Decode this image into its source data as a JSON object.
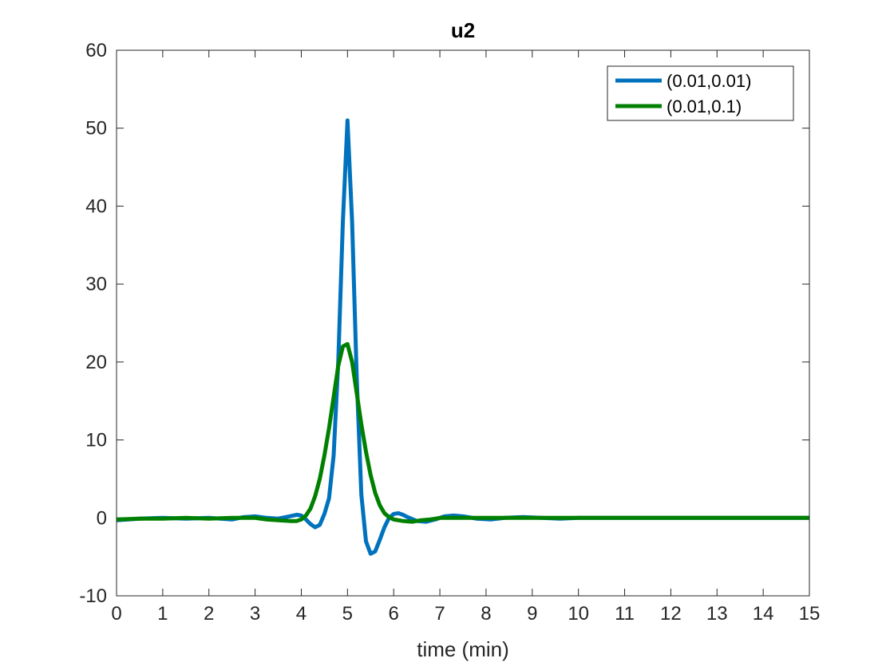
{
  "chart_data": {
    "type": "line",
    "title": "u2",
    "xlabel": "time (min)",
    "ylabel": "",
    "xlim": [
      0,
      15
    ],
    "ylim": [
      -10,
      60
    ],
    "xticks": [
      0,
      1,
      2,
      3,
      4,
      5,
      6,
      7,
      8,
      9,
      10,
      11,
      12,
      13,
      14,
      15
    ],
    "yticks": [
      -10,
      0,
      10,
      20,
      30,
      40,
      50,
      60
    ],
    "xtick_labels": [
      "0",
      "1",
      "2",
      "3",
      "4",
      "5",
      "6",
      "7",
      "8",
      "9",
      "10",
      "11",
      "12",
      "13",
      "14",
      "15"
    ],
    "ytick_labels": [
      "-10",
      "0",
      "10",
      "20",
      "30",
      "40",
      "50",
      "60"
    ],
    "grid": false,
    "legend_position": "top-right",
    "series": [
      {
        "name": "(0.01,0.01)",
        "color": "#0072BD",
        "x": [
          0,
          0.5,
          1,
          1.5,
          2,
          2.5,
          2.75,
          3,
          3.25,
          3.5,
          3.75,
          3.9,
          4.0,
          4.1,
          4.2,
          4.3,
          4.4,
          4.5,
          4.6,
          4.7,
          4.8,
          4.9,
          5.0,
          5.1,
          5.2,
          5.3,
          5.4,
          5.5,
          5.6,
          5.7,
          5.8,
          5.9,
          6.0,
          6.1,
          6.2,
          6.3,
          6.5,
          6.7,
          6.9,
          7.1,
          7.3,
          7.5,
          7.8,
          8.1,
          8.4,
          8.8,
          9.2,
          9.6,
          10,
          11,
          12,
          13,
          14,
          15
        ],
        "y": [
          -0.3,
          -0.1,
          0,
          -0.1,
          0,
          -0.2,
          0.1,
          0.2,
          0,
          -0.1,
          0.2,
          0.4,
          0.3,
          -0.2,
          -0.8,
          -1.2,
          -0.9,
          0.5,
          2.5,
          8,
          20,
          38,
          51,
          38,
          18,
          3,
          -3,
          -4.6,
          -4.3,
          -2.8,
          -1.2,
          0,
          0.5,
          0.6,
          0.4,
          0.1,
          -0.4,
          -0.5,
          -0.2,
          0.2,
          0.3,
          0.2,
          -0.1,
          -0.2,
          0,
          0.1,
          0,
          -0.1,
          0,
          0,
          0,
          0,
          0,
          0
        ]
      },
      {
        "name": "(0.01,0.1)",
        "color": "#008000",
        "x": [
          0,
          0.5,
          1,
          1.5,
          2,
          2.5,
          3,
          3.25,
          3.5,
          3.75,
          3.9,
          4.0,
          4.1,
          4.2,
          4.3,
          4.4,
          4.5,
          4.6,
          4.7,
          4.8,
          4.9,
          5.0,
          5.1,
          5.2,
          5.3,
          5.4,
          5.5,
          5.6,
          5.7,
          5.8,
          5.9,
          6.0,
          6.2,
          6.4,
          6.6,
          6.8,
          7.0,
          7.5,
          8,
          9,
          10,
          11,
          12,
          13,
          14,
          15
        ],
        "y": [
          -0.2,
          -0.1,
          -0.1,
          0,
          -0.1,
          0,
          0,
          -0.2,
          -0.3,
          -0.4,
          -0.4,
          -0.2,
          0.3,
          1.2,
          2.8,
          5,
          8,
          11.5,
          15.5,
          19.5,
          22,
          22.3,
          20,
          16,
          12,
          8.5,
          5.5,
          3.2,
          1.6,
          0.6,
          0.1,
          -0.2,
          -0.4,
          -0.5,
          -0.3,
          -0.2,
          0,
          0,
          0,
          0,
          0,
          0,
          0,
          0,
          0,
          0
        ]
      }
    ]
  }
}
